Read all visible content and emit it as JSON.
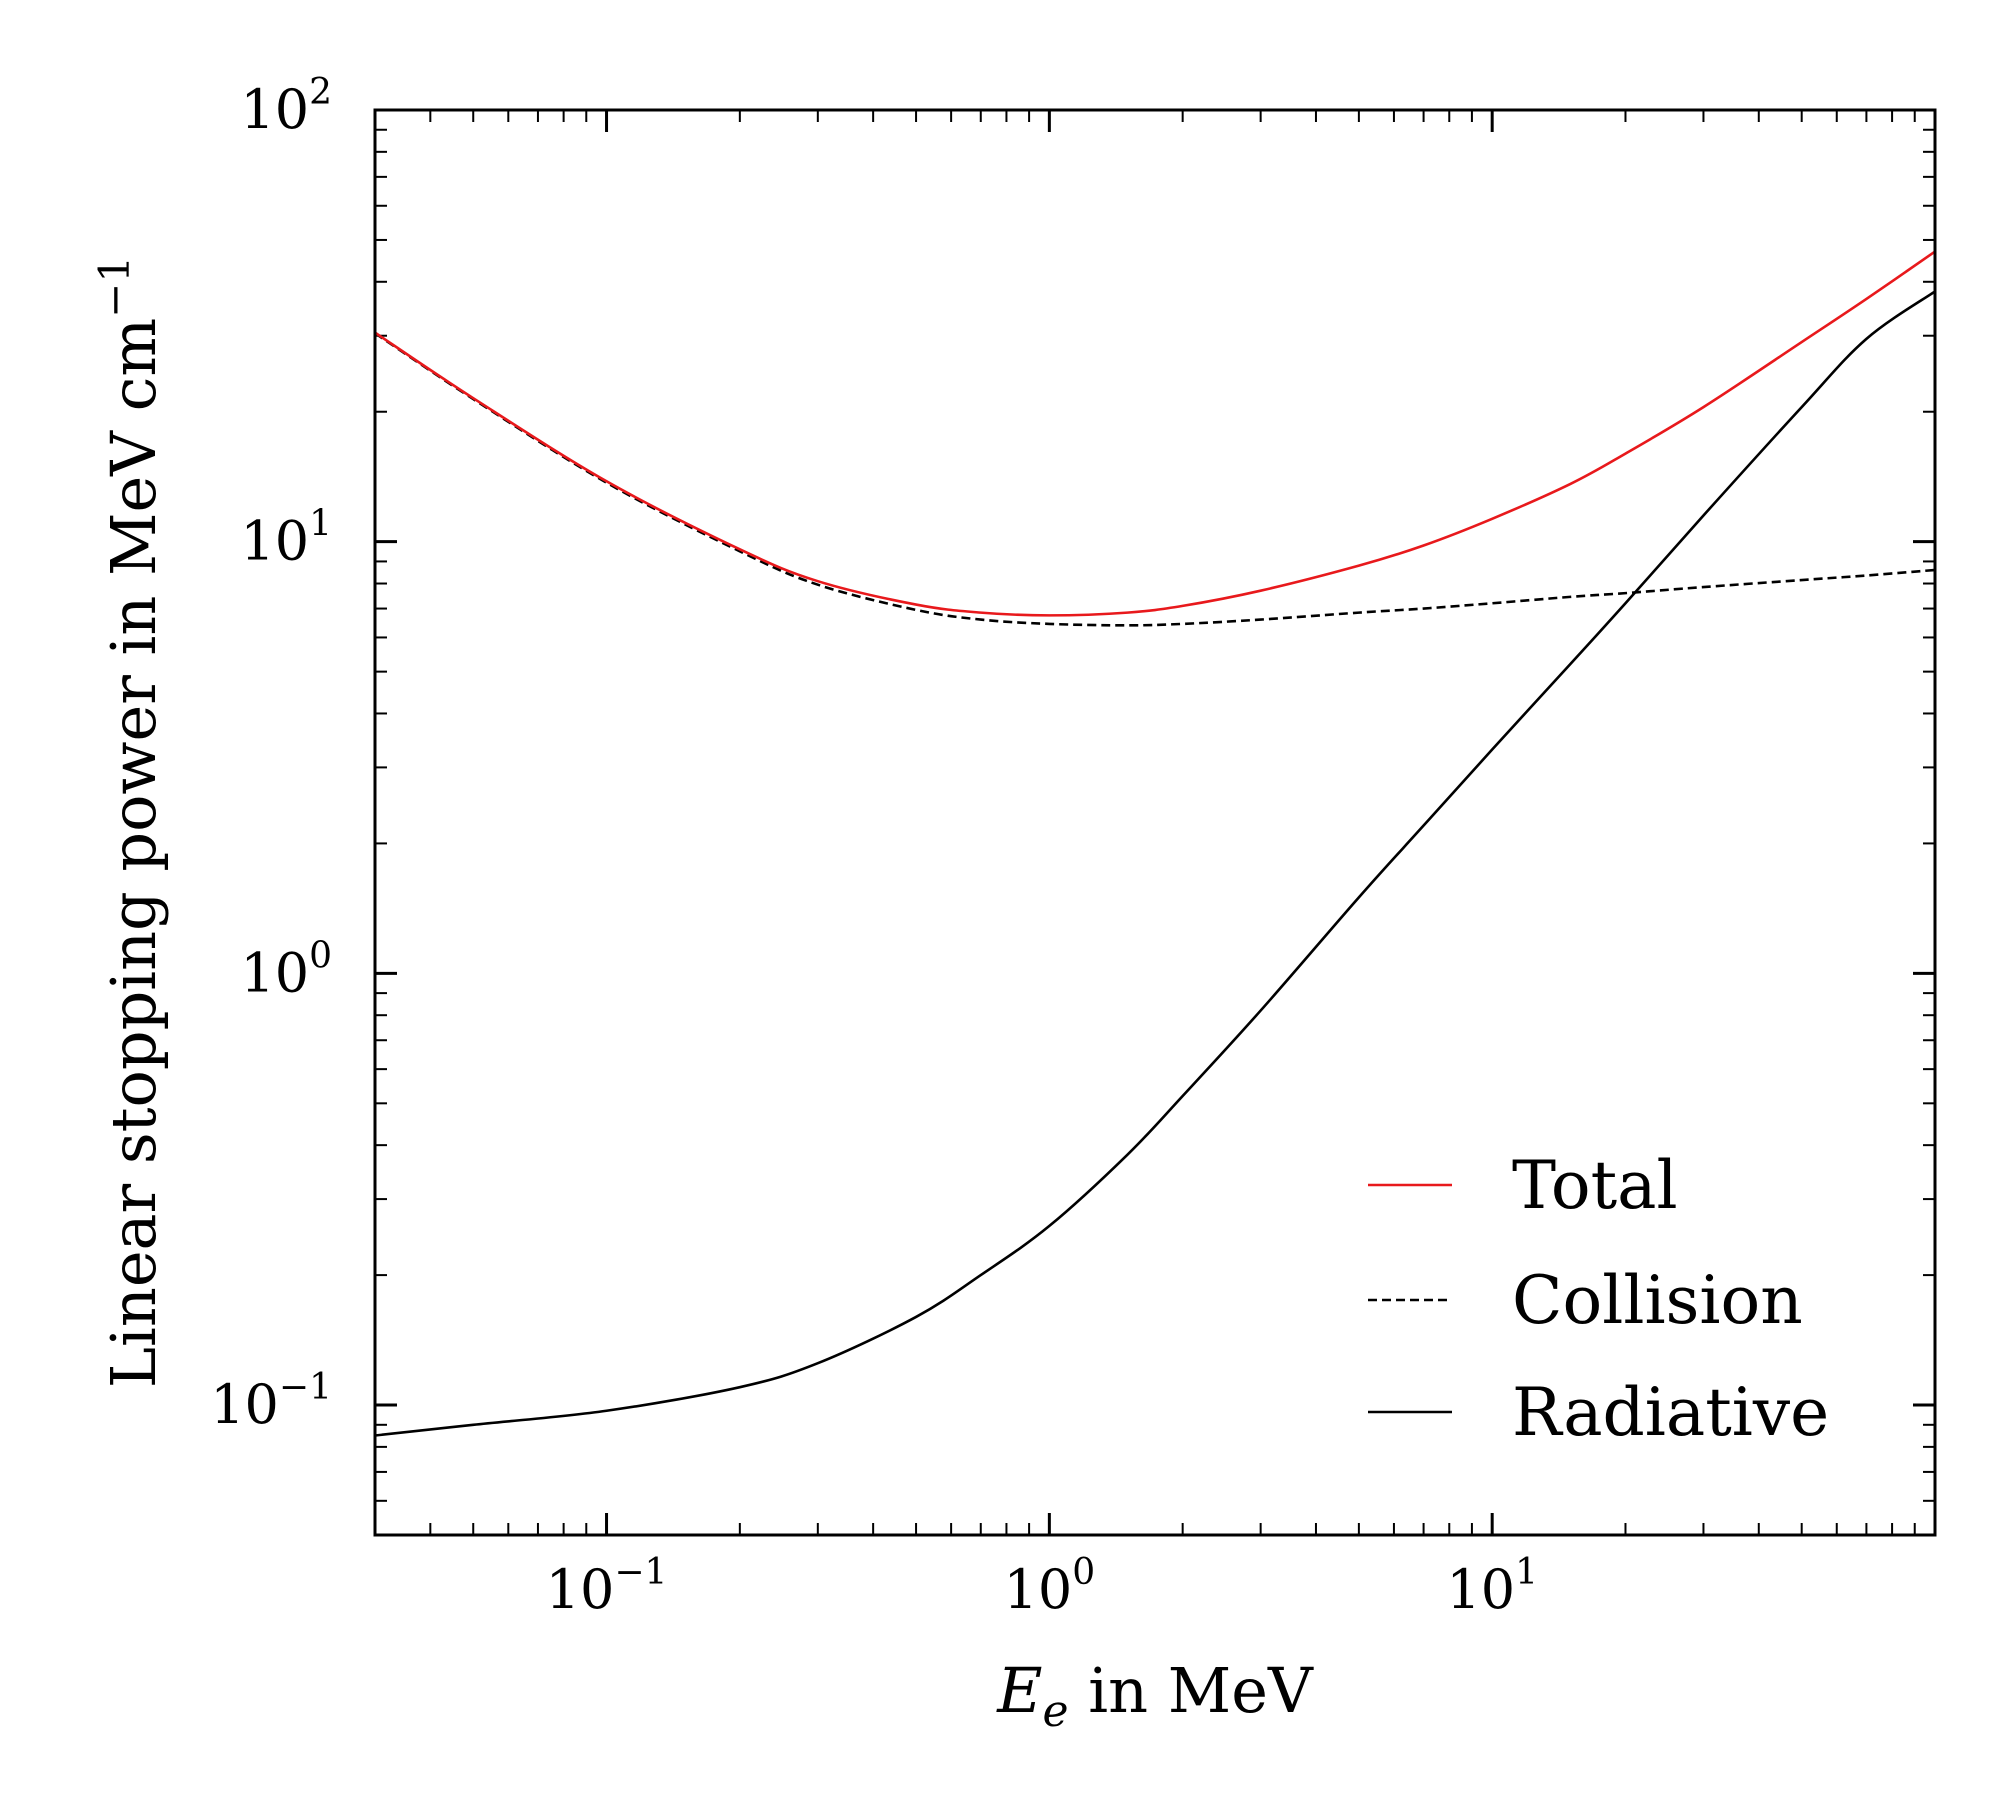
{
  "chart_data": {
    "type": "line",
    "title": "",
    "xlabel": "E_e in MeV",
    "xlabel_main": "E",
    "xlabel_sub": "e",
    "xlabel_rest": " in MeV",
    "ylabel": "Linear stopping power in MeV cm^-1",
    "ylabel_main": "Linear stopping power in MeV cm",
    "ylabel_exp": "−1",
    "xscale": "log",
    "yscale": "log",
    "xlim": [
      0.03,
      100
    ],
    "ylim": [
      0.05,
      100
    ],
    "grid": false,
    "legend_position": "lower-right",
    "x_ticks": [
      {
        "value": 0.1,
        "base": "10",
        "exp": "−1"
      },
      {
        "value": 1,
        "base": "10",
        "exp": "0"
      },
      {
        "value": 10,
        "base": "10",
        "exp": "1"
      }
    ],
    "y_ticks": [
      {
        "value": 0.1,
        "base": "10",
        "exp": "−1"
      },
      {
        "value": 1,
        "base": "10",
        "exp": "0"
      },
      {
        "value": 10,
        "base": "10",
        "exp": "1"
      },
      {
        "value": 100,
        "base": "10",
        "exp": "2"
      }
    ],
    "x": [
      0.03,
      0.05,
      0.1,
      0.2,
      0.3,
      0.5,
      0.7,
      1,
      1.5,
      2,
      3,
      5,
      7,
      10,
      15,
      20,
      30,
      50,
      70,
      100
    ],
    "series": [
      {
        "name": "Total",
        "color": "#e8191c",
        "dash": "solid",
        "values": [
          30.5,
          21.5,
          13.8,
          9.6,
          8.1,
          7.15,
          6.85,
          6.75,
          6.85,
          7.1,
          7.7,
          8.8,
          9.8,
          11.3,
          13.6,
          16.0,
          20.5,
          29.0,
          36.5,
          47.0
        ]
      },
      {
        "name": "Collision",
        "color": "#000000",
        "dash": "dashed",
        "values": [
          30.4,
          21.4,
          13.7,
          9.5,
          7.95,
          6.95,
          6.6,
          6.45,
          6.4,
          6.45,
          6.6,
          6.85,
          7.0,
          7.2,
          7.45,
          7.6,
          7.85,
          8.15,
          8.35,
          8.6
        ]
      },
      {
        "name": "Radiative",
        "color": "#000000",
        "dash": "solid",
        "values": [
          0.085,
          0.09,
          0.097,
          0.11,
          0.125,
          0.16,
          0.2,
          0.26,
          0.38,
          0.52,
          0.82,
          1.5,
          2.2,
          3.3,
          5.2,
          7.2,
          11.5,
          20.5,
          29.5,
          38.0
        ]
      }
    ]
  }
}
